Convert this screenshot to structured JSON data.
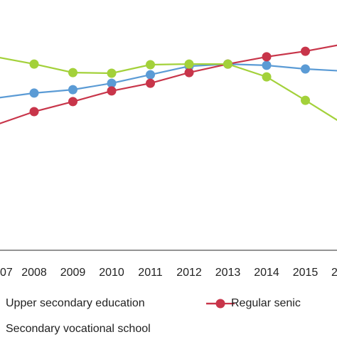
{
  "chart_data": {
    "type": "line",
    "categories": [
      "07",
      "2008",
      "2009",
      "2010",
      "2011",
      "2012",
      "2013",
      "2014",
      "2015",
      "2"
    ],
    "ylim": [
      0,
      100
    ],
    "series": [
      {
        "name": "Upper secondary education",
        "color": "#5b9bd5",
        "values": [
          71.3,
          73.7,
          75.3,
          78.3,
          82.3,
          86.3,
          87.3,
          86.7,
          85,
          84
        ]
      },
      {
        "name": "Regular senic",
        "color": "#c8354a",
        "values": [
          58.7,
          65,
          69.7,
          74.7,
          78.3,
          83.3,
          87.3,
          90.7,
          93.3,
          96.7
        ]
      },
      {
        "name": "Secondary vocational school",
        "color": "#a3d13a",
        "values": [
          90.7,
          87.3,
          83.3,
          83,
          87,
          87.3,
          87.3,
          81.3,
          70.3,
          59
        ]
      }
    ]
  }
}
